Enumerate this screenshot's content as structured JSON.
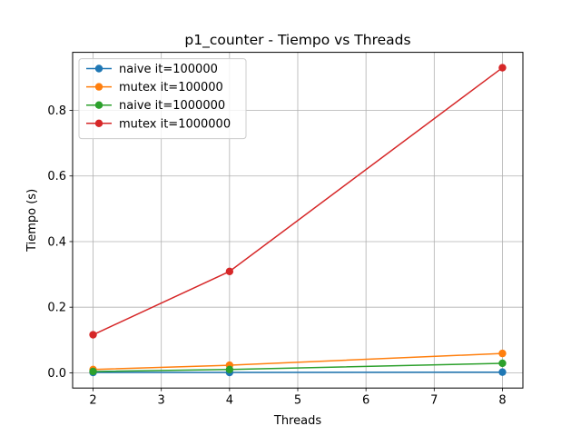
{
  "chart_data": {
    "type": "line",
    "title": "p1_counter - Tiempo vs Threads",
    "xlabel": "Threads",
    "ylabel": "Tiempo (s)",
    "x": [
      2,
      4,
      8
    ],
    "xlim": [
      1.7,
      8.3
    ],
    "ylim": [
      -0.0465,
      0.977
    ],
    "xticks": [
      2,
      3,
      4,
      5,
      6,
      7,
      8
    ],
    "xtick_labels": [
      "2",
      "3",
      "4",
      "5",
      "6",
      "7",
      "8"
    ],
    "yticks": [
      0.0,
      0.2,
      0.4,
      0.6,
      0.8
    ],
    "ytick_labels": [
      "0.0",
      "0.2",
      "0.4",
      "0.6",
      "0.8"
    ],
    "grid": true,
    "legend_position": "upper-left",
    "series": [
      {
        "name": "naive it=100000",
        "color": "#1f77b4",
        "values": [
          0.001,
          0.001,
          0.002
        ]
      },
      {
        "name": "mutex it=100000",
        "color": "#ff7f0e",
        "values": [
          0.01,
          0.023,
          0.059
        ]
      },
      {
        "name": "naive it=1000000",
        "color": "#2ca02c",
        "values": [
          0.004,
          0.01,
          0.029
        ]
      },
      {
        "name": "mutex it=1000000",
        "color": "#d62728",
        "values": [
          0.116,
          0.309,
          0.93
        ]
      }
    ]
  }
}
